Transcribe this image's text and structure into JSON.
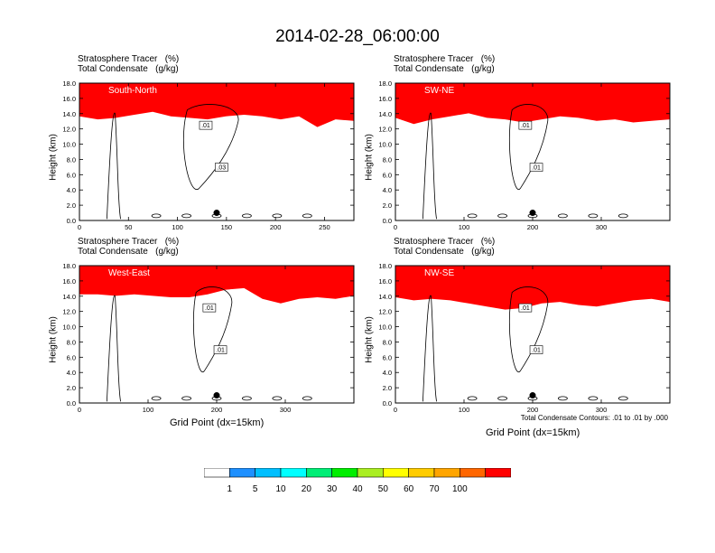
{
  "title": "2014-02-28_06:00:00",
  "panel_labels": {
    "tracer": "Stratosphere Tracer   (%)",
    "condensate": "Total Condensate   (g/kg)"
  },
  "ylabel": "Height (km)",
  "xlabel": "Grid Point (dx=15km)",
  "contour_note": "Total Condensate Contours: .01 to .01 by .000",
  "colors": {
    "fill_levels": [
      "#ffffff",
      "#1e90ff",
      "#00bfff",
      "#00ffff",
      "#00ee76",
      "#00ee00",
      "#aaee22",
      "#ffff00",
      "#ffcc00",
      "#ffa500",
      "#ff6600",
      "#ff0000"
    ]
  },
  "chart_data": [
    {
      "type": "heatmap",
      "panel": "South-North",
      "xlim": [
        0,
        280
      ],
      "ylim": [
        0,
        18
      ],
      "xticks": [
        0,
        50,
        100,
        150,
        200,
        250
      ],
      "yticks": [
        "0.0",
        "2.0",
        "4.0",
        "6.0",
        "8.0",
        "10.0",
        "12.0",
        "14.0",
        "16.0",
        "18.0"
      ],
      "tropopause_km": [
        15.0,
        14.6,
        14.8,
        15.2,
        15.6,
        15.0,
        14.8,
        14.6,
        15.0,
        15.2,
        15.0,
        14.6,
        15.0,
        13.6,
        14.6,
        14.4
      ],
      "contour_labels": [
        ".01",
        ".03"
      ],
      "marker_x": 140
    },
    {
      "type": "heatmap",
      "panel": "SW-NE",
      "xlim": [
        0,
        400
      ],
      "ylim": [
        0,
        18
      ],
      "xticks": [
        0,
        100,
        200,
        300
      ],
      "yticks": [
        "0.0",
        "2.0",
        "4.0",
        "6.0",
        "8.0",
        "10.0",
        "12.0",
        "14.0",
        "16.0",
        "18.0"
      ],
      "tropopause_km": [
        14.8,
        14.0,
        14.6,
        15.0,
        15.4,
        14.8,
        14.6,
        14.2,
        14.6,
        15.0,
        14.8,
        14.4,
        14.6,
        14.2,
        14.4,
        14.6
      ],
      "contour_labels": [
        ".01",
        ".01"
      ],
      "marker_x": 200
    },
    {
      "type": "heatmap",
      "panel": "West-East",
      "xlim": [
        0,
        400
      ],
      "ylim": [
        0,
        18
      ],
      "xticks": [
        0,
        100,
        200,
        300
      ],
      "yticks": [
        "0.0",
        "2.0",
        "4.0",
        "6.0",
        "8.0",
        "10.0",
        "12.0",
        "14.0",
        "16.0",
        "18.0"
      ],
      "tropopause_km": [
        15.6,
        15.6,
        15.4,
        15.6,
        15.4,
        15.2,
        15.2,
        15.6,
        16.2,
        16.4,
        15.0,
        14.4,
        15.0,
        15.2,
        15.0,
        15.4
      ],
      "contour_labels": [
        ".01",
        ".01"
      ],
      "marker_x": 200
    },
    {
      "type": "heatmap",
      "panel": "NW-SE",
      "xlim": [
        0,
        400
      ],
      "ylim": [
        0,
        18
      ],
      "xticks": [
        0,
        100,
        200,
        300
      ],
      "yticks": [
        "0.0",
        "2.0",
        "4.0",
        "6.0",
        "8.0",
        "10.0",
        "12.0",
        "14.0",
        "16.0",
        "18.0"
      ],
      "tropopause_km": [
        15.2,
        14.8,
        15.0,
        14.8,
        14.4,
        14.0,
        13.6,
        13.8,
        14.4,
        14.6,
        14.2,
        14.0,
        14.4,
        14.8,
        15.0,
        14.6
      ],
      "contour_labels": [
        ".01",
        ".01"
      ],
      "marker_x": 200
    }
  ],
  "colorbar": {
    "labels": [
      "1",
      "5",
      "10",
      "20",
      "30",
      "40",
      "50",
      "60",
      "70",
      "100"
    ]
  }
}
